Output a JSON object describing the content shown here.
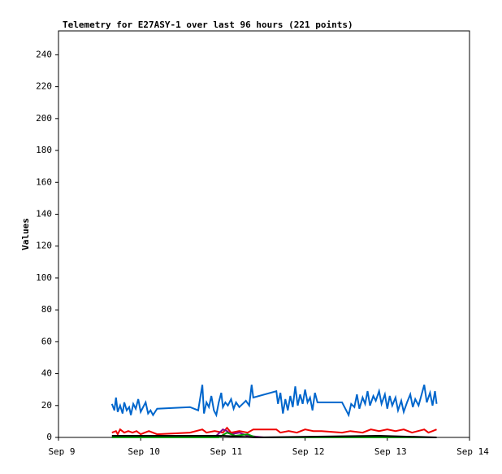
{
  "chart_data": {
    "type": "line",
    "title": "Telemetry for E27ASY-1 over last 96 hours (221 points)",
    "y_label": "Values",
    "xlim": [
      9,
      14
    ],
    "xticks": [
      {
        "value": 9,
        "label": "Sep 9"
      },
      {
        "value": 10,
        "label": "Sep 10"
      },
      {
        "value": 11,
        "label": "Sep 11"
      },
      {
        "value": 12,
        "label": "Sep 12"
      },
      {
        "value": 13,
        "label": "Sep 13"
      },
      {
        "value": 14,
        "label": "Sep 14"
      }
    ],
    "ylim": [
      0,
      255
    ],
    "yticks": [
      0,
      20,
      40,
      60,
      80,
      100,
      120,
      140,
      160,
      180,
      200,
      220,
      240
    ],
    "series": [
      {
        "color": "#0066cc",
        "x": [
          9.65,
          9.68,
          9.7,
          9.72,
          9.75,
          9.78,
          9.8,
          9.83,
          9.86,
          9.88,
          9.91,
          9.94,
          9.97,
          10.0,
          10.03,
          10.06,
          10.09,
          10.12,
          10.15,
          10.2,
          10.6,
          10.7,
          10.75,
          10.77,
          10.8,
          10.83,
          10.86,
          10.89,
          10.92,
          10.95,
          10.98,
          11.0,
          11.03,
          11.06,
          11.1,
          11.13,
          11.16,
          11.2,
          11.24,
          11.28,
          11.32,
          11.35,
          11.37,
          11.65,
          11.67,
          11.7,
          11.73,
          11.76,
          11.79,
          11.82,
          11.85,
          11.88,
          11.91,
          11.94,
          11.97,
          12.0,
          12.03,
          12.06,
          12.09,
          12.12,
          12.15,
          12.2,
          12.45,
          12.5,
          12.53,
          12.56,
          12.6,
          12.63,
          12.66,
          12.7,
          12.73,
          12.76,
          12.79,
          12.83,
          12.86,
          12.9,
          12.93,
          12.97,
          13.0,
          13.03,
          13.06,
          13.1,
          13.13,
          13.17,
          13.2,
          13.24,
          13.28,
          13.31,
          13.34,
          13.38,
          13.45,
          13.48,
          13.52,
          13.55,
          13.58,
          13.6
        ],
        "values": [
          21,
          17,
          25,
          16,
          20,
          15,
          22,
          17,
          19,
          14,
          21,
          18,
          24,
          16,
          19,
          22,
          15,
          17,
          14,
          18,
          19,
          17,
          33,
          15,
          22,
          19,
          26,
          17,
          14,
          22,
          28,
          19,
          22,
          20,
          24,
          18,
          22,
          19,
          21,
          23,
          20,
          33,
          25,
          29,
          21,
          28,
          15,
          24,
          17,
          26,
          19,
          32,
          20,
          27,
          21,
          30,
          22,
          25,
          17,
          28,
          22,
          22,
          22,
          17,
          14,
          21,
          19,
          27,
          18,
          25,
          21,
          29,
          20,
          26,
          23,
          29,
          21,
          27,
          18,
          26,
          20,
          25,
          17,
          23,
          16,
          22,
          27,
          19,
          24,
          20,
          33,
          22,
          28,
          20,
          29,
          21
        ]
      },
      {
        "color": "#ee0000",
        "x": [
          9.65,
          9.7,
          9.72,
          9.75,
          9.8,
          9.85,
          9.9,
          9.95,
          10.0,
          10.05,
          10.1,
          10.2,
          10.6,
          10.75,
          10.8,
          10.9,
          11.0,
          11.05,
          11.1,
          11.2,
          11.3,
          11.37,
          11.65,
          11.7,
          11.8,
          11.9,
          12.0,
          12.1,
          12.2,
          12.45,
          12.55,
          12.7,
          12.8,
          12.9,
          13.0,
          13.1,
          13.2,
          13.3,
          13.45,
          13.5,
          13.55,
          13.6
        ],
        "values": [
          3,
          4,
          2,
          5,
          3,
          4,
          3,
          4,
          2,
          3,
          4,
          2,
          3,
          5,
          3,
          4,
          3,
          6,
          3,
          4,
          3,
          5,
          5,
          3,
          4,
          3,
          5,
          4,
          4,
          3,
          4,
          3,
          5,
          4,
          5,
          4,
          5,
          3,
          5,
          3,
          4,
          5
        ]
      },
      {
        "color": "#880088",
        "x": [
          9.65,
          10.9,
          11.0,
          11.05,
          11.1,
          11.2,
          11.3,
          11.5,
          13.6
        ],
        "values": [
          0,
          0,
          5,
          4,
          2,
          3,
          1,
          0,
          0
        ]
      },
      {
        "color": "#009900",
        "x": [
          9.65,
          10.95,
          11.05,
          11.15,
          11.3,
          11.4,
          13.6
        ],
        "values": [
          0,
          0,
          3,
          1,
          2,
          0,
          0
        ]
      },
      {
        "color": "#000000",
        "x": [
          9.65,
          11.0,
          11.4,
          12.9,
          13.6
        ],
        "values": [
          1,
          1,
          0,
          1,
          0
        ]
      }
    ]
  }
}
